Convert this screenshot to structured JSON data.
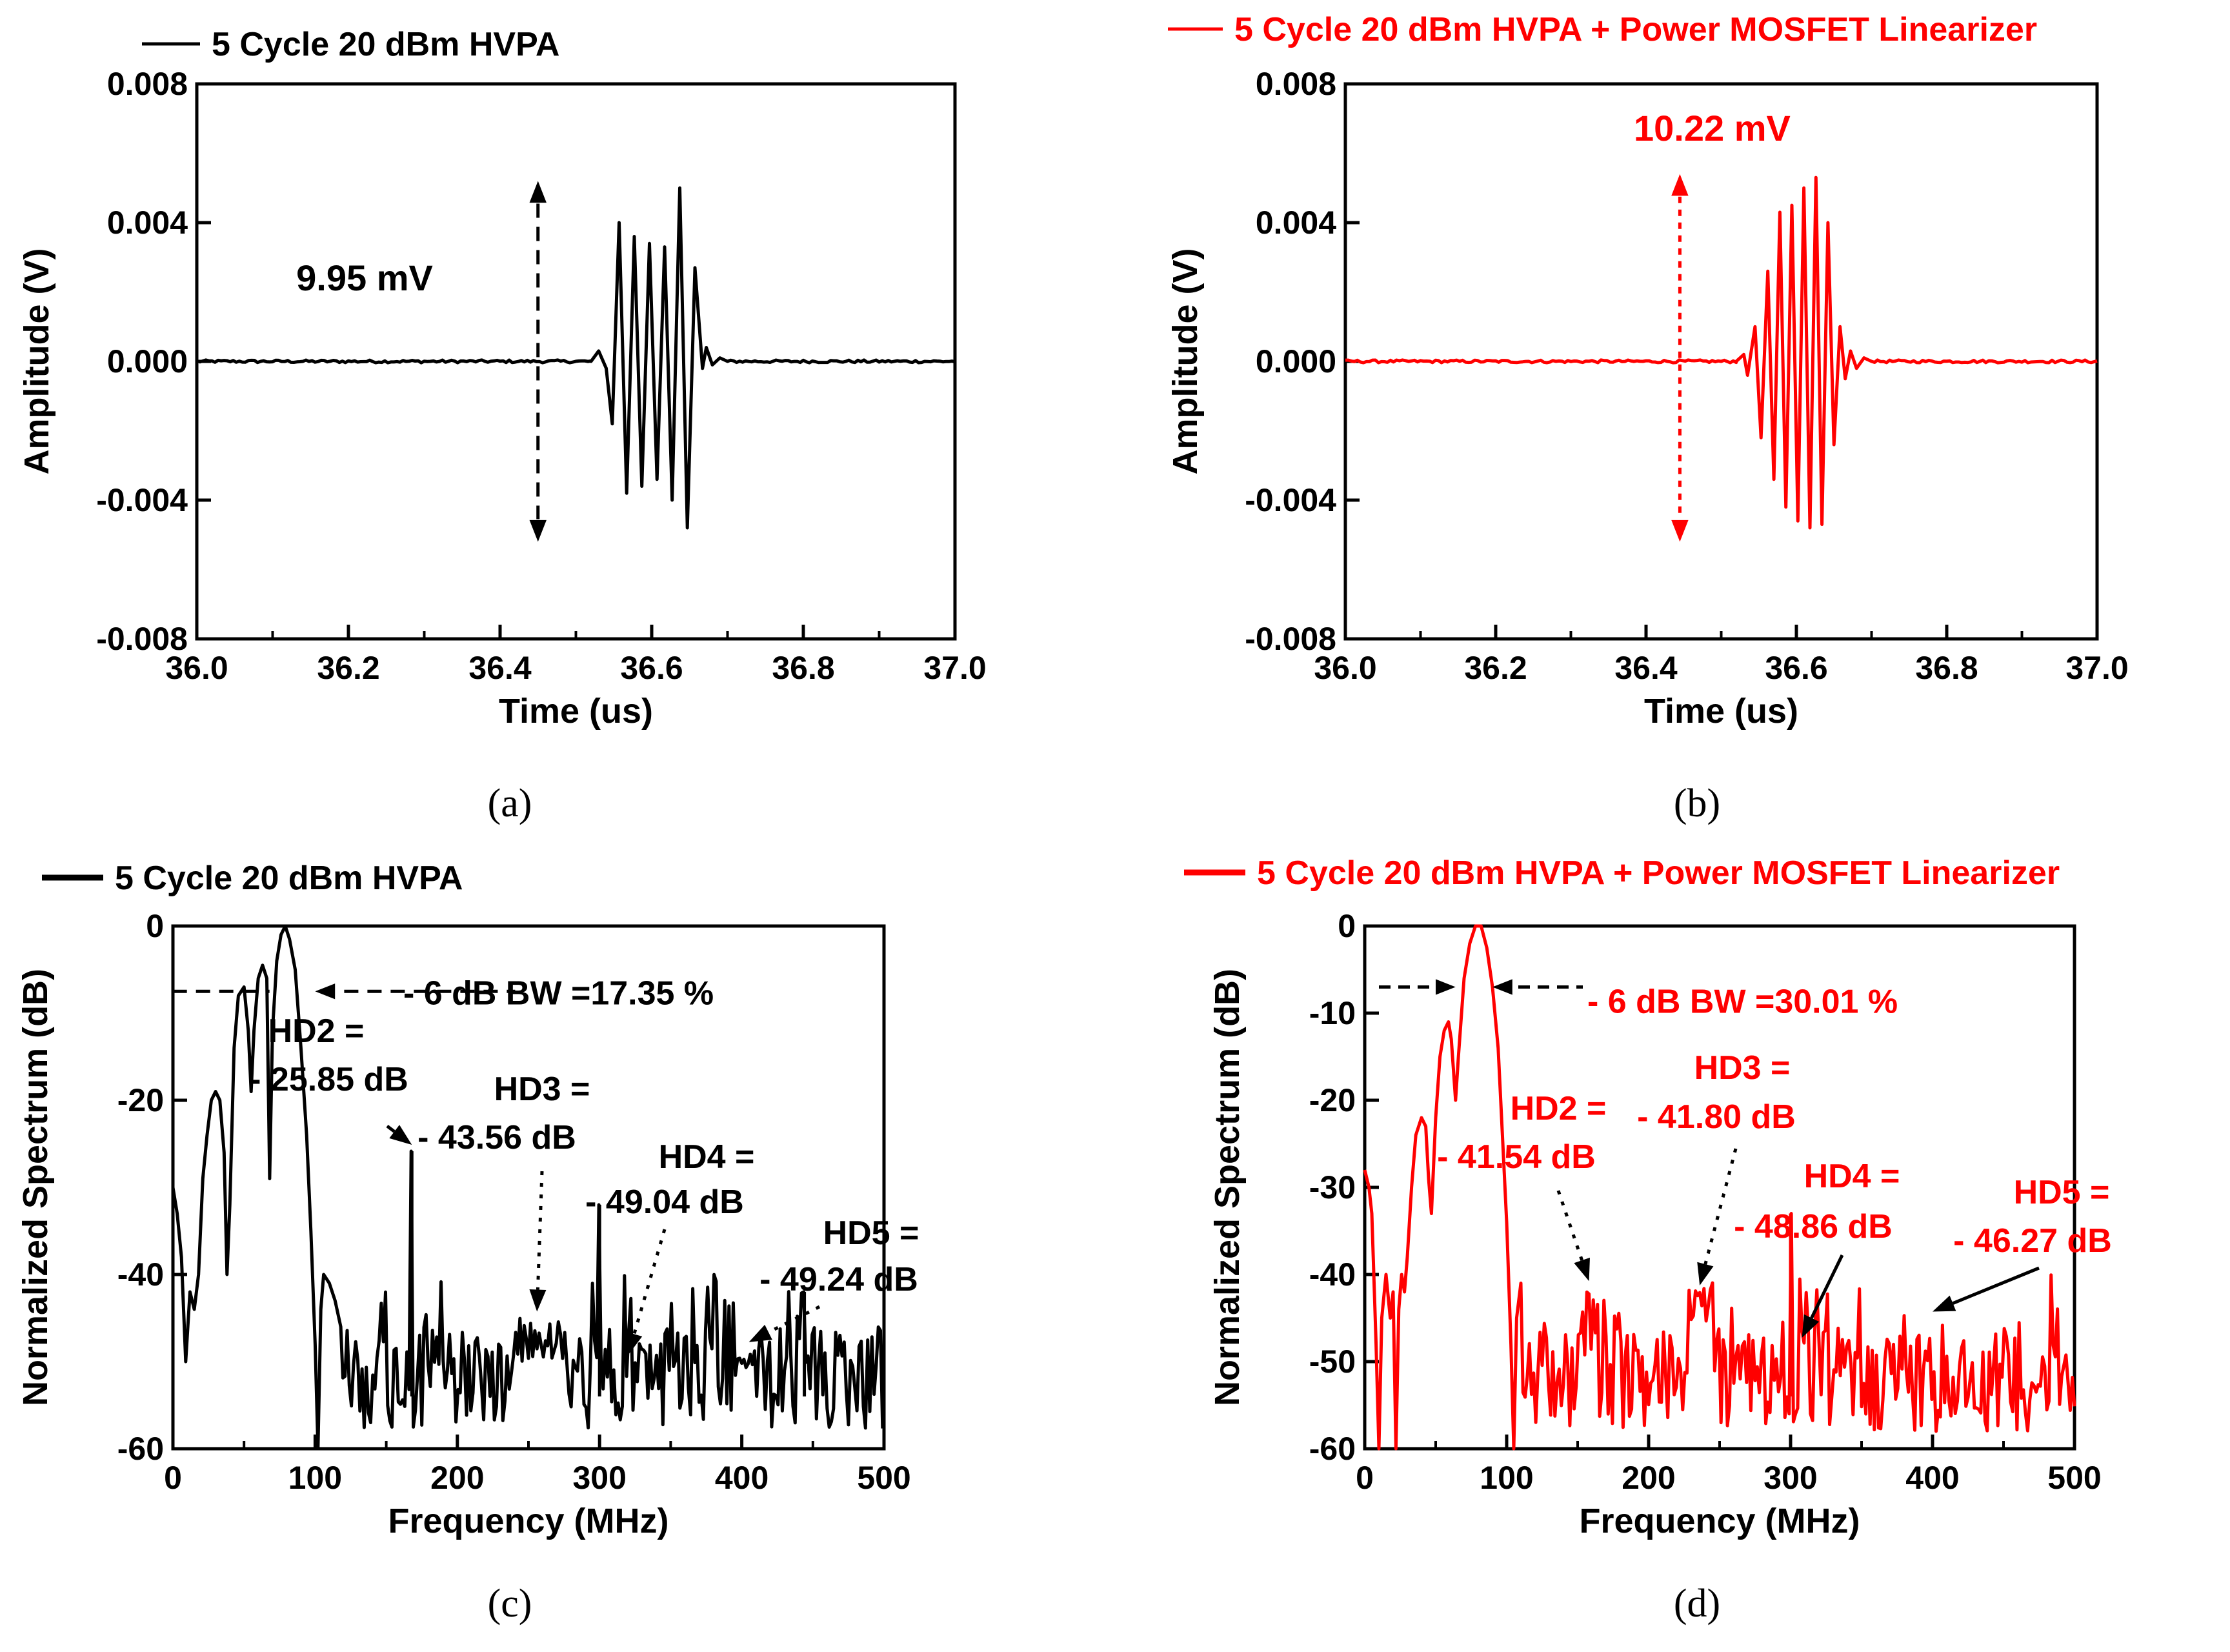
{
  "chart_data": [
    {
      "panel": "(a)",
      "type": "line",
      "color": "#000000",
      "legend": "5 Cycle 20 dBm HVPA",
      "xlabel": "Time (us)",
      "ylabel": "Amplitude (V)",
      "xlim": [
        36.0,
        37.0
      ],
      "ylim": [
        -0.008,
        0.008
      ],
      "xticks": [
        "36.0",
        "36.2",
        "36.4",
        "36.6",
        "36.8",
        "37.0"
      ],
      "yticks": [
        "0.008",
        "0.004",
        "0.000",
        "-0.004",
        "-0.008"
      ],
      "annotation": "9.95 mV",
      "arrow_x": 36.45,
      "arrow_range": [
        -0.0052,
        0.0052
      ],
      "peaks": [
        [
          36.52,
          0.0
        ],
        [
          36.53,
          0.0003
        ],
        [
          36.54,
          -0.0002
        ],
        [
          36.548,
          -0.0018
        ],
        [
          36.557,
          0.004
        ],
        [
          36.567,
          -0.0038
        ],
        [
          36.577,
          0.0036
        ],
        [
          36.587,
          -0.0036
        ],
        [
          36.597,
          0.0034
        ],
        [
          36.607,
          -0.0034
        ],
        [
          36.617,
          0.0033
        ],
        [
          36.627,
          -0.004
        ],
        [
          36.637,
          0.005
        ],
        [
          36.647,
          -0.0048
        ],
        [
          36.657,
          0.0027
        ],
        [
          36.667,
          -0.0002
        ],
        [
          36.672,
          0.0004
        ],
        [
          36.68,
          -0.0001
        ],
        [
          36.69,
          0.0001
        ],
        [
          36.7,
          0.0
        ]
      ]
    },
    {
      "panel": "(b)",
      "type": "line",
      "color": "#ff0000",
      "legend": "5 Cycle 20 dBm HVPA + Power MOSFET Linearizer",
      "xlabel": "Time (us)",
      "ylabel": "Amplitude (V)",
      "xlim": [
        36.0,
        37.0
      ],
      "ylim": [
        -0.008,
        0.008
      ],
      "xticks": [
        "36.0",
        "36.2",
        "36.4",
        "36.6",
        "36.8",
        "37.0"
      ],
      "yticks": [
        "0.008",
        "0.004",
        "0.000",
        "-0.004",
        "-0.008"
      ],
      "annotation": "10.22 mV",
      "arrow_x": 36.445,
      "arrow_range": [
        -0.0052,
        0.0054
      ],
      "peaks": [
        [
          36.52,
          0.0
        ],
        [
          36.53,
          0.0002
        ],
        [
          36.535,
          -0.0004
        ],
        [
          36.545,
          0.001
        ],
        [
          36.553,
          -0.0022
        ],
        [
          36.562,
          0.0026
        ],
        [
          36.57,
          -0.0034
        ],
        [
          36.578,
          0.0043
        ],
        [
          36.586,
          -0.0042
        ],
        [
          36.594,
          0.0045
        ],
        [
          36.602,
          -0.0046
        ],
        [
          36.61,
          0.005
        ],
        [
          36.618,
          -0.0048
        ],
        [
          36.626,
          0.0053
        ],
        [
          36.634,
          -0.0047
        ],
        [
          36.642,
          0.004
        ],
        [
          36.65,
          -0.0024
        ],
        [
          36.658,
          0.001
        ],
        [
          36.665,
          -0.0005
        ],
        [
          36.672,
          0.0003
        ],
        [
          36.68,
          -0.0002
        ],
        [
          36.69,
          0.0001
        ],
        [
          36.7,
          0.0
        ]
      ]
    },
    {
      "panel": "(c)",
      "type": "line",
      "color": "#000000",
      "legend": "5 Cycle 20 dBm HVPA",
      "xlabel": "Frequency (MHz)",
      "ylabel": "Normalized Spectrum (dB)",
      "xlim": [
        0,
        500
      ],
      "ylim": [
        -60,
        0
      ],
      "xticks": [
        "0",
        "100",
        "200",
        "300",
        "400",
        "500"
      ],
      "yticks": [
        "0",
        "-20",
        "-40",
        "-60"
      ],
      "bw_text": "- 6 dB BW =17.35 %",
      "bw_range": [
        18,
        100
      ],
      "bw_level": -7.5,
      "harmonics": [
        {
          "label": "HD2 =",
          "value": "- 25.85 dB",
          "freq": 168,
          "level": -25.85
        },
        {
          "label": "HD3 =",
          "value": "- 43.56 dB",
          "freq": 256,
          "level": -45
        },
        {
          "label": "HD4 =",
          "value": "- 49.04 dB",
          "freq": 320,
          "level": -50
        },
        {
          "label": "HD5 =",
          "value": "- 49.24 dB",
          "freq": 405,
          "level": -48.5
        }
      ],
      "envelope": [
        [
          0,
          -30
        ],
        [
          3,
          -33
        ],
        [
          6,
          -38
        ],
        [
          9,
          -50
        ],
        [
          12,
          -42
        ],
        [
          15,
          -44
        ],
        [
          18,
          -40
        ],
        [
          21,
          -29
        ],
        [
          24,
          -24
        ],
        [
          27,
          -20
        ],
        [
          30,
          -19
        ],
        [
          33,
          -20
        ],
        [
          36,
          -26
        ],
        [
          38,
          -40
        ],
        [
          40,
          -32
        ],
        [
          43,
          -14
        ],
        [
          46,
          -8
        ],
        [
          50,
          -7
        ],
        [
          53,
          -12
        ],
        [
          55,
          -19
        ],
        [
          57,
          -12
        ],
        [
          60,
          -6
        ],
        [
          63,
          -4.5
        ],
        [
          66,
          -6
        ],
        [
          68,
          -29
        ],
        [
          70,
          -12
        ],
        [
          73,
          -4
        ],
        [
          76,
          -1
        ],
        [
          79,
          0
        ],
        [
          82,
          -1.5
        ],
        [
          86,
          -5
        ],
        [
          90,
          -14
        ],
        [
          94,
          -24
        ],
        [
          97,
          -35
        ],
        [
          100,
          -48
        ],
        [
          102,
          -60
        ],
        [
          104,
          -44
        ],
        [
          106,
          -40
        ],
        [
          110,
          -41
        ],
        [
          114,
          -43
        ],
        [
          118,
          -46
        ]
      ],
      "spikes": [
        [
          168,
          -25.85
        ],
        [
          300,
          -32
        ],
        [
          444,
          -42
        ]
      ]
    },
    {
      "panel": "(d)",
      "type": "line",
      "color": "#ff0000",
      "legend": "5 Cycle 20 dBm HVPA + Power MOSFET Linearizer",
      "xlabel": "Frequency (MHz)",
      "ylabel": "Normalized Spectrum (dB)",
      "xlim": [
        0,
        500
      ],
      "ylim": [
        -60,
        0
      ],
      "xticks": [
        "0",
        "100",
        "200",
        "300",
        "400",
        "500"
      ],
      "yticks": [
        "0",
        "-10",
        "-20",
        "-30",
        "-40",
        "-50",
        "-60"
      ],
      "bw_text": "- 6 dB BW =30.01 %",
      "bw_range": [
        64,
        90
      ],
      "bw_level": -7,
      "harmonics": [
        {
          "label": "HD2 =",
          "value": "- 41.54 dB",
          "freq": 158,
          "level": -41.5
        },
        {
          "label": "HD3 =",
          "value": "- 41.80 dB",
          "freq": 236,
          "level": -42
        },
        {
          "label": "HD4 =",
          "value": "- 48.86 dB",
          "freq": 308,
          "level": -48
        },
        {
          "label": "HD5 =",
          "value": "- 46.27 dB",
          "freq": 400,
          "level": -45
        }
      ],
      "envelope": [
        [
          0,
          -28
        ],
        [
          3,
          -30
        ],
        [
          5,
          -33
        ],
        [
          8,
          -48
        ],
        [
          10,
          -60
        ],
        [
          12,
          -45
        ],
        [
          15,
          -40
        ],
        [
          18,
          -45
        ],
        [
          20,
          -42
        ],
        [
          22,
          -60
        ],
        [
          24,
          -44
        ],
        [
          26,
          -40
        ],
        [
          28,
          -42
        ],
        [
          30,
          -38
        ],
        [
          33,
          -30
        ],
        [
          36,
          -24
        ],
        [
          40,
          -22
        ],
        [
          43,
          -23
        ],
        [
          45,
          -29
        ],
        [
          47,
          -33
        ],
        [
          50,
          -22
        ],
        [
          53,
          -15
        ],
        [
          56,
          -12
        ],
        [
          59,
          -11
        ],
        [
          61,
          -13
        ],
        [
          64,
          -20
        ],
        [
          66,
          -15
        ],
        [
          70,
          -6
        ],
        [
          74,
          -2
        ],
        [
          78,
          0
        ],
        [
          82,
          0
        ],
        [
          86,
          -2.5
        ],
        [
          90,
          -7
        ],
        [
          94,
          -14
        ],
        [
          97,
          -24
        ],
        [
          100,
          -34
        ],
        [
          103,
          -48
        ],
        [
          105,
          -60
        ],
        [
          107,
          -45
        ],
        [
          110,
          -41
        ]
      ],
      "spikes": [
        [
          300,
          -33
        ]
      ]
    }
  ],
  "captions": [
    "(a)",
    "(b)",
    "(c)",
    "(d)"
  ],
  "colors": {
    "black": "#000000",
    "red": "#ff0000",
    "background": "#ffffff"
  }
}
